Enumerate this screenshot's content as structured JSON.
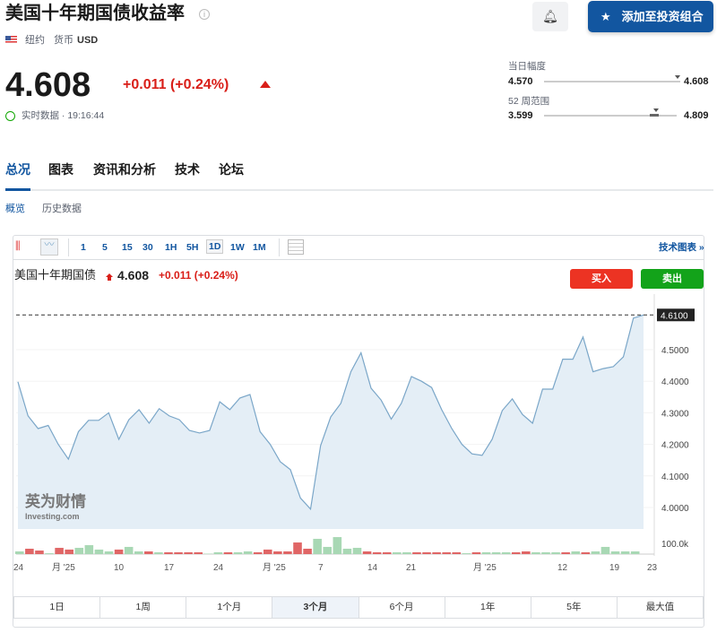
{
  "header": {
    "title": "美国十年期国债收益率",
    "location": "纽约",
    "currency_label": "货币",
    "currency": "USD",
    "price": "4.608",
    "change": "+0.011 (+0.24%)",
    "status": "实时数据 · 19:16:44",
    "add_button": "添加至投资组合"
  },
  "ranges": {
    "day_label": "当日幅度",
    "day_low": "4.570",
    "day_high": "4.608",
    "day_position": 0.98,
    "week52_label": "52 周范围",
    "week52_low": "3.599",
    "week52_high": "4.809",
    "week52_position": 0.84
  },
  "tabs": [
    {
      "label": "总况"
    },
    {
      "label": "图表"
    },
    {
      "label": "资讯和分析"
    },
    {
      "label": "技术"
    },
    {
      "label": "论坛"
    }
  ],
  "subtabs": [
    {
      "label": "概览"
    },
    {
      "label": "历史数据"
    }
  ],
  "chart_toolbar": {
    "timeframes": [
      "1",
      "5",
      "15",
      "30",
      "1H",
      "5H",
      "1D",
      "1W",
      "1M"
    ],
    "selected": "1D",
    "tech_chart": "技术图表 »"
  },
  "chart_header": {
    "name": "美国十年期国债",
    "price": "4.608",
    "change": "+0.011 (+0.24%)",
    "buy": "买入",
    "sell": "卖出"
  },
  "logo": {
    "cn": "英为财情",
    "en": "Investing.com"
  },
  "range_buttons": [
    "1日",
    "1周",
    "1个月",
    "3个月",
    "6个月",
    "1年",
    "5年",
    "最大值"
  ],
  "range_selected": "3个月",
  "colors": {
    "accent": "#1256a0",
    "up": "#d91e18",
    "line": "#7aa6c8",
    "fill": "#e4eef6",
    "vol_up": "#a8d8b4",
    "vol_down": "#e06666"
  },
  "chart_data": {
    "type": "area",
    "current_label": "4.6100",
    "current_value": 4.61,
    "ylim": [
      3.95,
      4.66
    ],
    "yticks": [
      "4.0000",
      "4.1000",
      "4.2000",
      "4.3000",
      "4.4000",
      "4.5000"
    ],
    "ytick_values": [
      4.0,
      4.1,
      4.2,
      4.3,
      4.4,
      4.5
    ],
    "xticks": [
      "24",
      "月 '25",
      "10",
      "17",
      "24",
      "月 '25",
      "7",
      "14",
      "21",
      "月 '25",
      "12",
      "19",
      "23"
    ],
    "values": [
      4.398,
      4.29,
      4.25,
      4.26,
      4.2,
      4.153,
      4.24,
      4.276,
      4.276,
      4.3,
      4.216,
      4.278,
      4.31,
      4.267,
      4.313,
      4.29,
      4.278,
      4.244,
      4.236,
      4.244,
      4.335,
      4.31,
      4.347,
      4.358,
      4.24,
      4.2,
      4.145,
      4.12,
      4.03,
      3.995,
      4.196,
      4.287,
      4.33,
      4.43,
      4.49,
      4.378,
      4.34,
      4.28,
      4.33,
      4.415,
      4.4,
      4.38,
      4.31,
      4.25,
      4.2,
      4.17,
      4.165,
      4.216,
      4.307,
      4.344,
      4.295,
      4.267,
      4.375,
      4.375,
      4.47,
      4.47,
      4.54,
      4.43,
      4.44,
      4.446,
      4.477,
      4.6,
      4.61
    ],
    "volume_label": "100.0k",
    "volume_k": [
      25,
      50,
      33,
      8,
      58,
      42,
      58,
      83,
      42,
      25,
      42,
      67,
      25,
      25,
      17,
      17,
      17,
      17,
      17,
      4,
      17,
      17,
      17,
      25,
      17,
      42,
      25,
      25,
      108,
      50,
      142,
      67,
      158,
      50,
      58,
      25,
      17,
      17,
      17,
      17,
      17,
      17,
      17,
      17,
      17,
      8,
      17,
      17,
      17,
      17,
      17,
      25,
      17,
      17,
      17,
      17,
      25,
      17,
      25,
      67,
      25,
      25,
      25
    ],
    "volume_dir": [
      "u",
      "d",
      "d",
      "u",
      "d",
      "d",
      "u",
      "u",
      "u",
      "u",
      "d",
      "u",
      "u",
      "d",
      "u",
      "d",
      "d",
      "d",
      "d",
      "u",
      "u",
      "d",
      "u",
      "u",
      "d",
      "d",
      "d",
      "d",
      "d",
      "d",
      "u",
      "u",
      "u",
      "u",
      "u",
      "d",
      "d",
      "d",
      "u",
      "u",
      "d",
      "d",
      "d",
      "d",
      "d",
      "u",
      "d",
      "u",
      "u",
      "u",
      "d",
      "d",
      "u",
      "u",
      "u",
      "d",
      "u",
      "d",
      "u",
      "u",
      "u",
      "u",
      "u"
    ]
  }
}
